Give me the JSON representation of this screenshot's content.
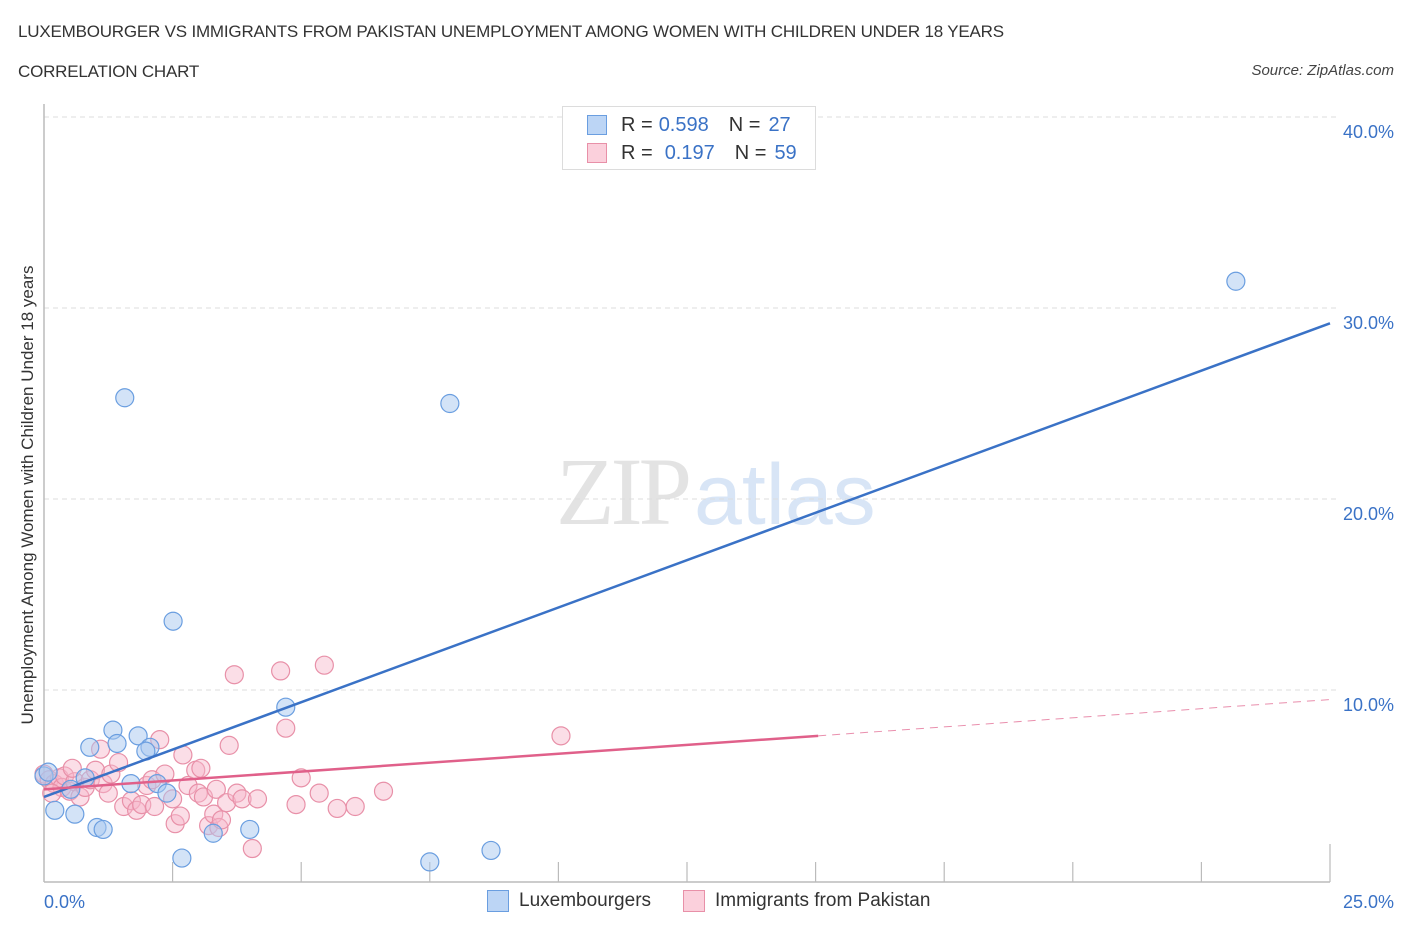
{
  "header": {
    "title": "LUXEMBOURGER VS IMMIGRANTS FROM PAKISTAN UNEMPLOYMENT AMONG WOMEN WITH CHILDREN UNDER 18 YEARS",
    "subtitle": "CORRELATION CHART",
    "source": "Source: ZipAtlas.com"
  },
  "watermark": {
    "zip": "ZIP",
    "atlas": "atlas"
  },
  "legend": {
    "rows": [
      {
        "r_label": "R =",
        "r_value": "0.598",
        "n_label": "N =",
        "n_value": "27",
        "color": "#a8c8f0",
        "border": "#6a9ee0"
      },
      {
        "r_label": "R =",
        "r_value": "0.197",
        "n_label": "N =",
        "n_value": "59",
        "color": "#f9c2d2",
        "border": "#e890a8"
      }
    ]
  },
  "axes": {
    "ylabel": "Unemployment Among Women with Children Under 18 years",
    "yticks": [
      "40.0%",
      "30.0%",
      "20.0%",
      "10.0%"
    ],
    "xtick_left": "0.0%",
    "xtick_right": "25.0%"
  },
  "bottom_legend": {
    "items": [
      {
        "label": "Luxembourgers",
        "color": "#a8c8f0",
        "border": "#6a9ee0"
      },
      {
        "label": "Immigrants from Pakistan",
        "color": "#f9c2d2",
        "border": "#e890a8"
      }
    ]
  },
  "colors": {
    "blue_series": "#3a72c6",
    "blue_fill": "#a8c8f0",
    "pink_series": "#e0608a",
    "pink_fill": "#f7b6ca",
    "tick_text": "#3a72c6",
    "grid": "#dddddd"
  },
  "chart_data": {
    "type": "scatter",
    "title": "LUXEMBOURGER VS IMMIGRANTS FROM PAKISTAN UNEMPLOYMENT AMONG WOMEN WITH CHILDREN UNDER 18 YEARS",
    "subtitle": "CORRELATION CHART",
    "xlabel": "",
    "ylabel": "Unemployment Among Women with Children Under 18 years",
    "xlim": [
      0,
      25
    ],
    "ylim": [
      0,
      42
    ],
    "x_tick_labels": [
      "0.0%",
      "25.0%"
    ],
    "y_tick_labels": [
      "10.0%",
      "20.0%",
      "30.0%",
      "40.0%"
    ],
    "grid": "horizontal dashed",
    "legend_position": "top-center and bottom",
    "series": [
      {
        "name": "Luxembourgers",
        "R": 0.598,
        "N": 27,
        "color": "#3a72c6",
        "trendline": {
          "x": [
            0,
            25
          ],
          "y": [
            4.4,
            29.2
          ],
          "style": "solid"
        },
        "points": [
          [
            23.17,
            31.4
          ],
          [
            1.57,
            25.3
          ],
          [
            7.89,
            25.0
          ],
          [
            2.51,
            13.6
          ],
          [
            4.7,
            9.1
          ],
          [
            1.34,
            7.9
          ],
          [
            1.83,
            7.6
          ],
          [
            0.89,
            7.0
          ],
          [
            1.42,
            7.2
          ],
          [
            2.06,
            7.0
          ],
          [
            1.98,
            6.8
          ],
          [
            0.0,
            5.5
          ],
          [
            0.8,
            5.4
          ],
          [
            1.69,
            5.1
          ],
          [
            2.2,
            5.1
          ],
          [
            2.39,
            4.6
          ],
          [
            0.52,
            4.8
          ],
          [
            0.21,
            3.7
          ],
          [
            0.6,
            3.5
          ],
          [
            1.03,
            2.8
          ],
          [
            1.15,
            2.7
          ],
          [
            4.0,
            2.7
          ],
          [
            3.29,
            2.5
          ],
          [
            2.68,
            1.2
          ],
          [
            7.5,
            1.0
          ],
          [
            8.69,
            1.6
          ],
          [
            0.08,
            5.7
          ]
        ]
      },
      {
        "name": "Immigrants from Pakistan",
        "R": 0.197,
        "N": 59,
        "color": "#e0608a",
        "trendline": {
          "x": [
            0,
            15.05,
            25
          ],
          "y": [
            4.8,
            7.6,
            9.5
          ],
          "style": "solid to 15%, dashed beyond"
        },
        "points": [
          [
            0.0,
            5.6
          ],
          [
            0.1,
            5.3
          ],
          [
            0.2,
            5.1
          ],
          [
            0.3,
            5.4
          ],
          [
            0.35,
            4.9
          ],
          [
            0.4,
            5.5
          ],
          [
            0.5,
            4.7
          ],
          [
            0.6,
            5.2
          ],
          [
            0.7,
            4.4
          ],
          [
            0.8,
            4.9
          ],
          [
            0.9,
            5.3
          ],
          [
            1.0,
            5.8
          ],
          [
            1.1,
            6.9
          ],
          [
            1.15,
            5.1
          ],
          [
            1.3,
            5.6
          ],
          [
            1.45,
            6.2
          ],
          [
            1.55,
            3.9
          ],
          [
            1.7,
            4.2
          ],
          [
            1.8,
            3.7
          ],
          [
            1.9,
            4.0
          ],
          [
            2.0,
            5.0
          ],
          [
            2.1,
            5.3
          ],
          [
            2.25,
            7.4
          ],
          [
            2.35,
            5.6
          ],
          [
            2.5,
            4.3
          ],
          [
            2.55,
            3.0
          ],
          [
            2.65,
            3.4
          ],
          [
            2.7,
            6.6
          ],
          [
            2.8,
            5.0
          ],
          [
            2.95,
            5.8
          ],
          [
            3.0,
            4.6
          ],
          [
            3.05,
            5.9
          ],
          [
            3.1,
            4.4
          ],
          [
            3.2,
            2.9
          ],
          [
            3.3,
            3.5
          ],
          [
            3.35,
            4.8
          ],
          [
            3.4,
            2.8
          ],
          [
            3.45,
            3.2
          ],
          [
            3.55,
            4.1
          ],
          [
            3.6,
            7.1
          ],
          [
            3.7,
            10.8
          ],
          [
            3.75,
            4.6
          ],
          [
            3.85,
            4.3
          ],
          [
            4.05,
            1.7
          ],
          [
            4.15,
            4.3
          ],
          [
            4.6,
            11.0
          ],
          [
            4.7,
            8.0
          ],
          [
            4.9,
            4.0
          ],
          [
            5.0,
            5.4
          ],
          [
            5.35,
            4.6
          ],
          [
            5.45,
            11.3
          ],
          [
            5.7,
            3.8
          ],
          [
            6.05,
            3.9
          ],
          [
            6.6,
            4.7
          ],
          [
            10.05,
            7.6
          ],
          [
            0.15,
            4.6
          ],
          [
            0.55,
            5.9
          ],
          [
            1.25,
            4.6
          ],
          [
            2.15,
            3.9
          ]
        ]
      }
    ]
  }
}
